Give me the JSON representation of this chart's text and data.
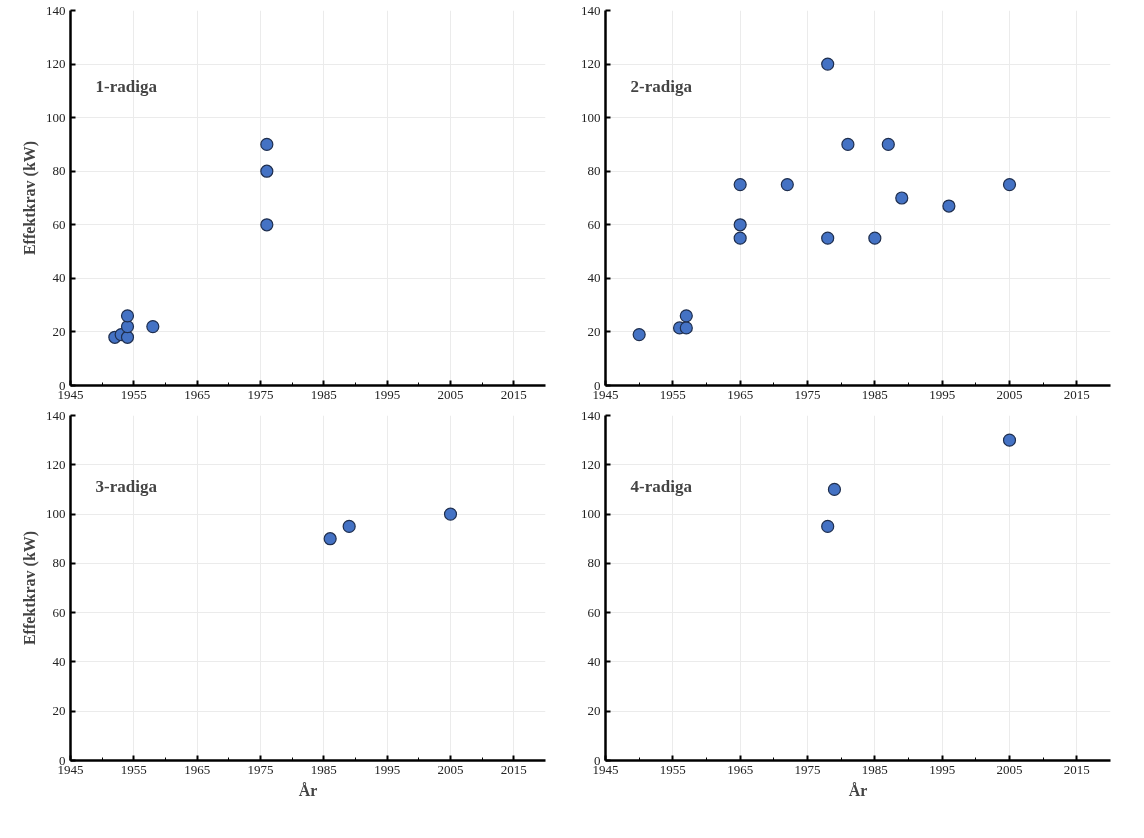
{
  "chart_data": [
    {
      "type": "scatter",
      "title": "1-radiga",
      "ylabel": "Effektkrav (kW)",
      "marker": "circle",
      "grid": true,
      "xlim": [
        1945,
        2020
      ],
      "ylim": [
        0,
        140
      ],
      "xticks": [
        1945,
        {
          "value": 1950,
          "label": null
        },
        1955,
        {
          "value": 1960,
          "label": null
        },
        1965,
        {
          "value": 1970,
          "label": null
        },
        1975,
        {
          "value": 1980,
          "label": null
        },
        1985,
        {
          "value": 1990,
          "label": null
        },
        1995,
        {
          "value": 2000,
          "label": null
        },
        2005,
        {
          "value": 2010,
          "label": null
        },
        2015
      ],
      "yticks": [
        0,
        20,
        40,
        60,
        80,
        100,
        120,
        140
      ],
      "series": [
        {
          "color": "#4472c4",
          "x": [
            1952,
            1953,
            1954,
            1954,
            1954,
            1958,
            1976,
            1976,
            1976
          ],
          "values": [
            18,
            19,
            18,
            22,
            26,
            22,
            60,
            80,
            90
          ]
        }
      ]
    },
    {
      "type": "scatter",
      "title": "2-radiga",
      "marker": "circle",
      "grid": true,
      "xlim": [
        1945,
        2020
      ],
      "ylim": [
        0,
        140
      ],
      "xticks": [
        1945,
        {
          "value": 1950,
          "label": null
        },
        1955,
        {
          "value": 1960,
          "label": null
        },
        1965,
        {
          "value": 1970,
          "label": null
        },
        1975,
        {
          "value": 1980,
          "label": null
        },
        1985,
        {
          "value": 1990,
          "label": null
        },
        1995,
        {
          "value": 2000,
          "label": null
        },
        2005,
        {
          "value": 2010,
          "label": null
        },
        2015
      ],
      "yticks": [
        0,
        20,
        40,
        60,
        80,
        100,
        120,
        140
      ],
      "series": [
        {
          "color": "#4472c4",
          "x": [
            1950,
            1956,
            1957,
            1957,
            1965,
            1965,
            1965,
            1972,
            1978,
            1978,
            1981,
            1985,
            1987,
            1989,
            1996,
            2005
          ],
          "values": [
            19,
            21.5,
            21.5,
            26,
            55,
            60,
            75,
            75,
            55,
            120,
            90,
            55,
            90,
            70,
            67,
            75
          ]
        }
      ]
    },
    {
      "type": "scatter",
      "title": "3-radiga",
      "xlabel": "År",
      "ylabel": "Effektkrav (kW)",
      "marker": "circle",
      "grid": true,
      "xlim": [
        1945,
        2020
      ],
      "ylim": [
        0,
        140
      ],
      "xticks": [
        1945,
        {
          "value": 1950,
          "label": null
        },
        1955,
        {
          "value": 1960,
          "label": null
        },
        1965,
        {
          "value": 1970,
          "label": null
        },
        1975,
        {
          "value": 1980,
          "label": null
        },
        1985,
        {
          "value": 1990,
          "label": null
        },
        1995,
        {
          "value": 2000,
          "label": null
        },
        2005,
        {
          "value": 2010,
          "label": null
        },
        2015
      ],
      "yticks": [
        0,
        20,
        40,
        60,
        80,
        100,
        120,
        140
      ],
      "series": [
        {
          "color": "#4472c4",
          "x": [
            1986,
            1989,
            2005
          ],
          "values": [
            90,
            95,
            100
          ]
        }
      ]
    },
    {
      "type": "scatter",
      "title": "4-radiga",
      "xlabel": "År",
      "marker": "circle",
      "grid": true,
      "xlim": [
        1945,
        2020
      ],
      "ylim": [
        0,
        140
      ],
      "xticks": [
        1945,
        {
          "value": 1950,
          "label": null
        },
        1955,
        {
          "value": 1960,
          "label": null
        },
        1965,
        {
          "value": 1970,
          "label": null
        },
        1975,
        {
          "value": 1980,
          "label": null
        },
        1985,
        {
          "value": 1990,
          "label": null
        },
        1995,
        {
          "value": 2000,
          "label": null
        },
        2005,
        {
          "value": 2010,
          "label": null
        },
        2015
      ],
      "yticks": [
        0,
        20,
        40,
        60,
        80,
        100,
        120,
        140
      ],
      "series": [
        {
          "color": "#4472c4",
          "x": [
            1978,
            1979,
            2005
          ],
          "values": [
            95,
            110,
            130
          ]
        }
      ]
    }
  ]
}
